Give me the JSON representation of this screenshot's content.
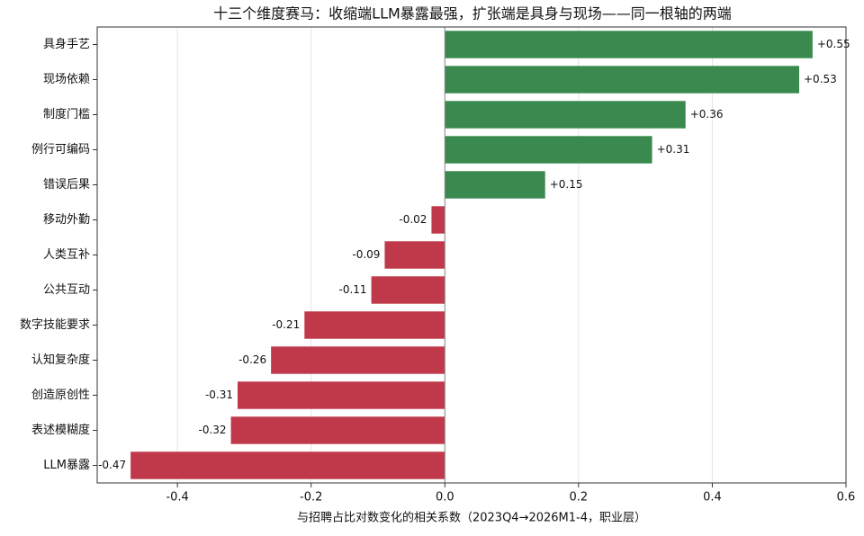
{
  "chart_data": {
    "type": "barh",
    "title": "十三个维度赛马：收缩端LLM暴露最强，扩张端是具身与现场——同一根轴的两端",
    "x_label": "与招聘占比对数变化的相关系数（2023Q4→2026M1-4，职业层）",
    "categories": [
      "具身手艺",
      "现场依赖",
      "制度门槛",
      "例行可编码",
      "错误后果",
      "移动外勤",
      "人类互补",
      "公共互动",
      "数字技能要求",
      "认知复杂度",
      "创造原创性",
      "表述模糊度",
      "LLM暴露"
    ],
    "values": [
      0.55,
      0.53,
      0.36,
      0.31,
      0.15,
      -0.02,
      -0.09,
      -0.11,
      -0.21,
      -0.26,
      -0.31,
      -0.32,
      -0.47
    ],
    "value_labels": [
      "+0.55",
      "+0.53",
      "+0.36",
      "+0.31",
      "+0.15",
      "-0.02",
      "-0.09",
      "-0.11",
      "-0.21",
      "-0.26",
      "-0.31",
      "-0.32",
      "-0.47"
    ],
    "positive_color": "#3a8a50",
    "negative_color": "#c0394a",
    "xlim": [
      -0.52,
      0.6
    ],
    "xticks": [
      -0.4,
      -0.2,
      {
        "value": 0,
        "label": "0.0"
      },
      0.2,
      0.4,
      0.6
    ],
    "grid": true
  }
}
